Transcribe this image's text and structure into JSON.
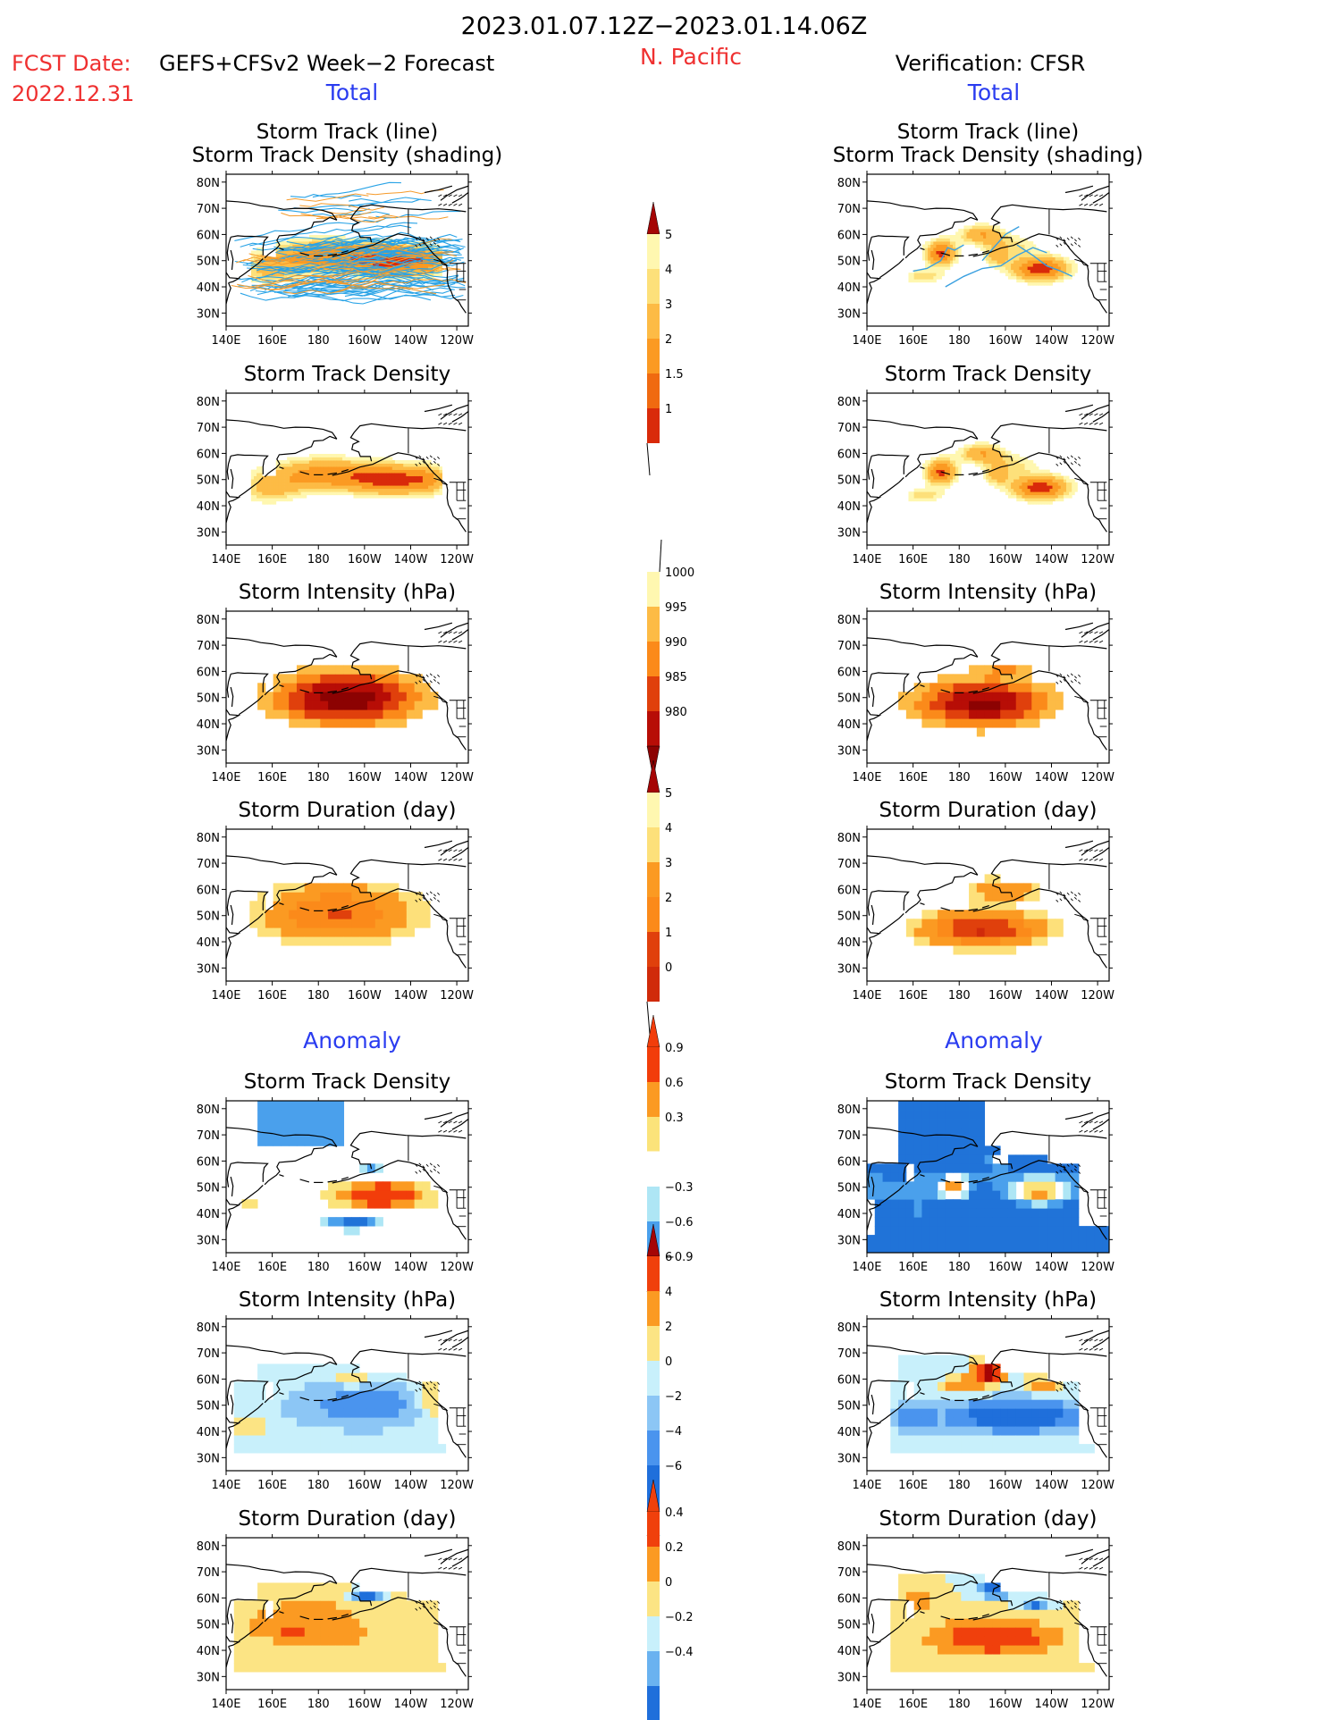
{
  "header": {
    "period": "2023.01.07.12Z−2023.01.14.06Z",
    "region": "N. Pacific",
    "fcst_label": "FCST Date:",
    "fcst_model": "GEFS+CFSv2 Week−2 Forecast",
    "fcst_date": "2022.12.31",
    "verification": "Verification: CFSR",
    "total_label": "Total",
    "anomaly_label": "Anomaly"
  },
  "axes": {
    "x_ticks": [
      "140E",
      "160E",
      "180",
      "160W",
      "140W",
      "120W"
    ],
    "y_ticks": [
      "80N",
      "70N",
      "60N",
      "50N",
      "40N",
      "30N"
    ],
    "lon_range": [
      140,
      245
    ],
    "lat_range": [
      25,
      83
    ]
  },
  "colors": {
    "dens_total": [
      "#fff7b0",
      "#fde07a",
      "#fdbb45",
      "#fb9a22",
      "#f06a10",
      "#d92a0a",
      "#a50505"
    ],
    "intensity_total": [
      "#fff7b0",
      "#fdbb45",
      "#fb8a1a",
      "#e0400c",
      "#b70d06",
      "#8c0202"
    ],
    "anom_dens": [
      "#2073d8",
      "#4aa0ec",
      "#aee6f5",
      "#ffffff",
      "#fbe37a",
      "#fb9a22",
      "#f23d0a"
    ],
    "anom_int": [
      "#1f6fdb",
      "#4a94ee",
      "#8cc6f5",
      "#c8f0fb",
      "#fce484",
      "#fb9a22",
      "#f0400c",
      "#a50505"
    ],
    "anom_dur": [
      "#1f6fdb",
      "#6ab2f0",
      "#c8f0fb",
      "#fce484",
      "#fb9a22",
      "#f0400c"
    ]
  },
  "chart_data": [
    {
      "id": "fc_track",
      "column": "forecast",
      "type": "heatmap",
      "title": [
        "Storm Track (line)",
        "Storm Track Density (shading)"
      ]
    },
    {
      "id": "vf_track",
      "column": "verification",
      "type": "heatmap",
      "title": [
        "Storm Track (line)",
        "Storm Track Density (shading)"
      ]
    },
    {
      "id": "fc_density",
      "column": "forecast",
      "type": "heatmap",
      "title": [
        "Storm Track Density"
      ]
    },
    {
      "id": "vf_density",
      "column": "verification",
      "type": "heatmap",
      "title": [
        "Storm Track Density"
      ]
    },
    {
      "id": "fc_int",
      "column": "forecast",
      "type": "heatmap",
      "title": [
        "Storm Intensity (hPa)"
      ]
    },
    {
      "id": "vf_int",
      "column": "verification",
      "type": "heatmap",
      "title": [
        "Storm Intensity (hPa)"
      ]
    },
    {
      "id": "fc_dur",
      "column": "forecast",
      "type": "heatmap",
      "title": [
        "Storm Duration (day)"
      ]
    },
    {
      "id": "vf_dur",
      "column": "verification",
      "type": "heatmap",
      "title": [
        "Storm Duration (day)"
      ]
    },
    {
      "id": "fa_dens",
      "column": "forecast",
      "type": "heatmap",
      "title": [
        "Storm Track Density"
      ]
    },
    {
      "id": "va_dens",
      "column": "verification",
      "type": "heatmap",
      "title": [
        "Storm Track Density"
      ]
    },
    {
      "id": "fa_int",
      "column": "forecast",
      "type": "heatmap",
      "title": [
        "Storm Intensity (hPa)"
      ]
    },
    {
      "id": "va_int",
      "column": "verification",
      "type": "heatmap",
      "title": [
        "Storm Intensity (hPa)"
      ]
    },
    {
      "id": "fa_dur",
      "column": "forecast",
      "type": "heatmap",
      "title": [
        "Storm Duration (day)"
      ]
    },
    {
      "id": "va_dur",
      "column": "verification",
      "type": "heatmap",
      "title": [
        "Storm Duration (day)"
      ]
    }
  ],
  "colorbars": [
    {
      "id": "cb_density",
      "labels": [
        "5",
        "4",
        "3",
        "2",
        "1.5",
        "1"
      ]
    },
    {
      "id": "cb_intensity",
      "labels": [
        "1000",
        "995",
        "990",
        "985",
        "980"
      ]
    },
    {
      "id": "cb_duration",
      "labels": [
        "5",
        "4",
        "3",
        "2",
        "1",
        "0"
      ]
    },
    {
      "id": "cb_anom_dens",
      "labels": [
        "0.9",
        "0.6",
        "0.3",
        "−0.3",
        "−0.6",
        "−0.9"
      ]
    },
    {
      "id": "cb_anom_int",
      "labels": [
        "6",
        "4",
        "2",
        "0",
        "−2",
        "−4",
        "−6"
      ]
    },
    {
      "id": "cb_anom_dur",
      "labels": [
        "0.4",
        "0.2",
        "0",
        "−0.2",
        "−0.4"
      ]
    }
  ]
}
